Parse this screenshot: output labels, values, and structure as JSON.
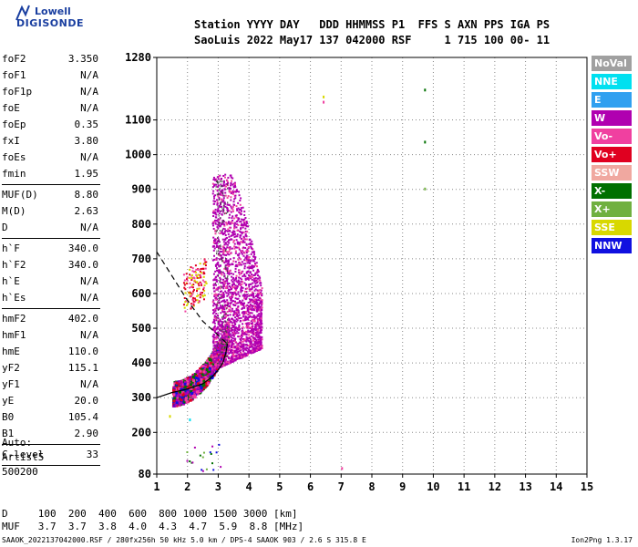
{
  "logo": {
    "line1": "Lowell",
    "line2": "DIGISONDE"
  },
  "header": {
    "line1": "Station YYYY DAY   DDD HHMMSS P1  FFS S AXN PPS IGA PS",
    "line2": "SaoLuis 2022 May17 137 042000 RSF     1 715 100 00- 11"
  },
  "params": {
    "group1": [
      {
        "k": "foF2",
        "v": "3.350"
      },
      {
        "k": "foF1",
        "v": "N/A"
      },
      {
        "k": "foF1p",
        "v": "N/A"
      },
      {
        "k": "foE",
        "v": "N/A"
      },
      {
        "k": "foEp",
        "v": "0.35"
      },
      {
        "k": "fxI",
        "v": "3.80"
      },
      {
        "k": "foEs",
        "v": "N/A"
      },
      {
        "k": "fmin",
        "v": "1.95"
      }
    ],
    "group2": [
      {
        "k": "MUF(D)",
        "v": "8.80"
      },
      {
        "k": "M(D)",
        "v": "2.63"
      },
      {
        "k": "D",
        "v": "N/A"
      }
    ],
    "group3": [
      {
        "k": "h`F",
        "v": "340.0"
      },
      {
        "k": "h`F2",
        "v": "340.0"
      },
      {
        "k": "h`E",
        "v": "N/A"
      },
      {
        "k": "h`Es",
        "v": "N/A"
      }
    ],
    "group4": [
      {
        "k": "hmF2",
        "v": "402.0"
      },
      {
        "k": "hmF1",
        "v": "N/A"
      },
      {
        "k": "hmE",
        "v": "110.0"
      },
      {
        "k": "yF2",
        "v": "115.1"
      },
      {
        "k": "yF1",
        "v": "N/A"
      },
      {
        "k": "yE",
        "v": "20.0"
      },
      {
        "k": "B0",
        "v": "105.4"
      },
      {
        "k": "B1",
        "v": "2.90"
      }
    ],
    "group5": [
      {
        "k": "C-level",
        "v": "33"
      }
    ]
  },
  "artist": {
    "line1": "Auto:",
    "line2": "Artist5",
    "line3": "500200"
  },
  "legend": [
    {
      "label": "NoVal",
      "color": "#a0a0a0"
    },
    {
      "label": "NNE",
      "color": "#00e0f0"
    },
    {
      "label": "E",
      "color": "#30a0f0"
    },
    {
      "label": "W",
      "color": "#b000b0"
    },
    {
      "label": "Vo-",
      "color": "#f040a0"
    },
    {
      "label": "Vo+",
      "color": "#e00020"
    },
    {
      "label": "SSW",
      "color": "#f0a8a0"
    },
    {
      "label": "X-",
      "color": "#007000"
    },
    {
      "label": "X+",
      "color": "#70b040"
    },
    {
      "label": "SSE",
      "color": "#d8d800"
    },
    {
      "label": "NNW",
      "color": "#1010e0"
    }
  ],
  "bottom": {
    "line1": "D     100  200  400  600  800 1000 1500 3000 [km]",
    "line2": "MUF   3.7  3.7  3.8  4.0  4.3  4.7  5.9  8.8 [MHz]"
  },
  "footer": {
    "left": "SAAOK_2022137042000.RSF / 280fx256h 50 kHz 5.0 km / DPS-4 SAAOK 903 / 2.6 S 315.8 E",
    "right": "Ion2Png 1.3.17"
  },
  "chart_data": {
    "type": "scatter",
    "xlim": [
      1,
      15
    ],
    "ylim": [
      80,
      1280
    ],
    "x_ticks": [
      "1",
      "2",
      "3",
      "4",
      "5",
      "6",
      "7",
      "8",
      "9",
      "10",
      "11",
      "12",
      "13",
      "14",
      "15"
    ],
    "y_ticks": [
      "80",
      "200",
      "300",
      "400",
      "500",
      "600",
      "700",
      "800",
      "900",
      "1000",
      "1100",
      "1280"
    ],
    "trace_clusters": [
      {
        "name": "F2 trace",
        "x_range": [
          1.5,
          3.3
        ],
        "y_range": [
          300,
          480
        ],
        "colors": [
          "#b000b0",
          "#e00020",
          "#1010e0",
          "#007000",
          "#f040a0"
        ]
      },
      {
        "name": "upper spread",
        "x_range": [
          2.8,
          4.5
        ],
        "y_range": [
          380,
          950
        ],
        "colors": [
          "#b000b0",
          "#f040a0"
        ]
      },
      {
        "name": "oblique echoes",
        "x_range": [
          1.8,
          2.6
        ],
        "y_range": [
          540,
          700
        ],
        "colors": [
          "#e00020",
          "#d8d800",
          "#f040a0"
        ]
      }
    ],
    "profile_curve": [
      [
        1.0,
        300
      ],
      [
        1.5,
        315
      ],
      [
        2.0,
        325
      ],
      [
        2.5,
        340
      ],
      [
        2.8,
        360
      ],
      [
        3.0,
        380
      ],
      [
        3.15,
        400
      ],
      [
        3.25,
        430
      ],
      [
        3.3,
        455
      ]
    ],
    "dashed_curve": [
      [
        1.0,
        720
      ],
      [
        1.5,
        650
      ],
      [
        2.0,
        580
      ],
      [
        2.5,
        520
      ],
      [
        3.0,
        480
      ],
      [
        3.3,
        455
      ]
    ],
    "isolated_points": [
      {
        "x": 6.4,
        "y": 1170,
        "color": "#d8d800"
      },
      {
        "x": 6.4,
        "y": 1155,
        "color": "#f040a0"
      },
      {
        "x": 9.7,
        "y": 1190,
        "color": "#007000"
      },
      {
        "x": 9.7,
        "y": 1040,
        "color": "#007000"
      },
      {
        "x": 9.7,
        "y": 905,
        "color": "#70b040"
      },
      {
        "x": 7.0,
        "y": 100,
        "color": "#f040a0"
      },
      {
        "x": 2.05,
        "y": 240,
        "color": "#00e0f0"
      },
      {
        "x": 1.4,
        "y": 250,
        "color": "#d8d800"
      }
    ]
  }
}
